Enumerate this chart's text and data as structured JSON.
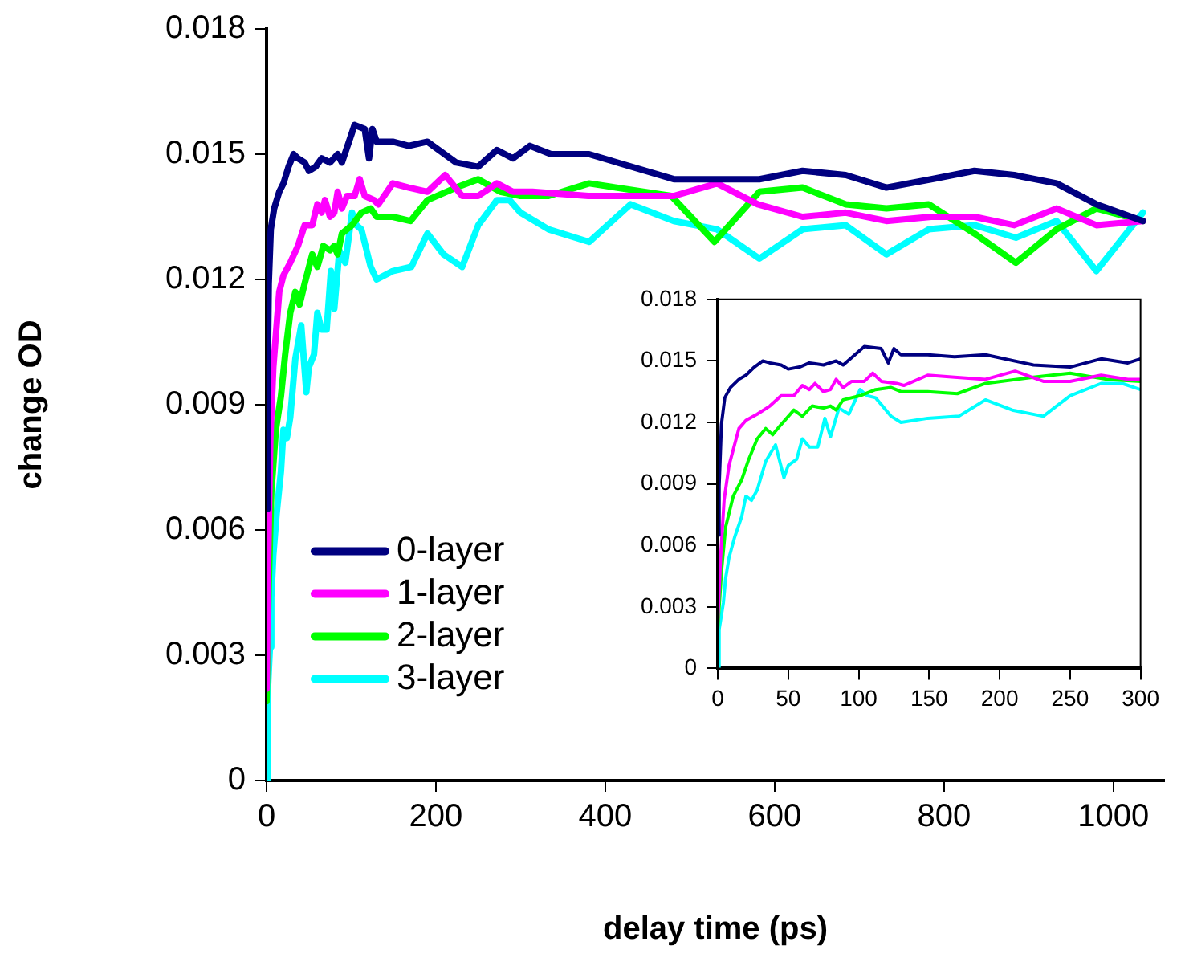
{
  "chart_data": [
    {
      "type": "line",
      "xlabel": "delay time (ps)",
      "ylabel": "change OD",
      "xlim": [
        0,
        1060
      ],
      "ylim": [
        0,
        0.018
      ],
      "xticks": [
        0,
        200,
        400,
        600,
        800,
        1000
      ],
      "yticks": [
        0,
        0.003,
        0.006,
        0.009,
        0.012,
        0.015,
        0.018
      ],
      "legend": "bottom left",
      "marker": "none",
      "series": [
        {
          "name": "0-layer",
          "color": "#000080",
          "x": [
            0,
            1,
            2.6,
            5,
            9,
            15,
            20,
            26,
            32,
            37,
            45,
            50,
            58,
            65,
            75,
            84,
            89,
            104,
            116,
            121,
            125,
            130,
            149,
            168,
            190,
            224,
            250,
            272,
            291,
            311,
            336,
            381,
            481,
            519,
            582,
            633,
            684,
            732,
            785,
            836,
            883,
            933,
            980,
            1035
          ],
          "values": [
            0.0065,
            0.0089,
            0.0119,
            0.0132,
            0.0137,
            0.0141,
            0.0143,
            0.0147,
            0.015,
            0.0149,
            0.0148,
            0.0146,
            0.0147,
            0.0149,
            0.0148,
            0.015,
            0.0148,
            0.0157,
            0.0156,
            0.0149,
            0.0156,
            0.0153,
            0.0153,
            0.0152,
            0.0153,
            0.0148,
            0.0147,
            0.0151,
            0.0149,
            0.0152,
            0.015,
            0.015,
            0.0144,
            0.0144,
            0.0144,
            0.0146,
            0.0145,
            0.0142,
            0.0144,
            0.0146,
            0.0145,
            0.0143,
            0.0138,
            0.0134
          ]
        },
        {
          "name": "1-layer",
          "color": "#ff00ff",
          "x": [
            0,
            2,
            4.5,
            8,
            15,
            20,
            28,
            37,
            45,
            54,
            60,
            65,
            69,
            75,
            80,
            84,
            89,
            95,
            104,
            110,
            116,
            127,
            132,
            149,
            168,
            190,
            211,
            231,
            250,
            272,
            291,
            314,
            380,
            481,
            532,
            580,
            633,
            684,
            732,
            785,
            836,
            883,
            933,
            980,
            1035
          ],
          "values": [
            0.0022,
            0.0054,
            0.0082,
            0.0099,
            0.0117,
            0.0121,
            0.0124,
            0.0128,
            0.0133,
            0.0133,
            0.0138,
            0.0136,
            0.0139,
            0.0135,
            0.0136,
            0.0141,
            0.0137,
            0.014,
            0.014,
            0.0144,
            0.014,
            0.0139,
            0.0138,
            0.0143,
            0.0142,
            0.0141,
            0.0145,
            0.014,
            0.014,
            0.0143,
            0.0141,
            0.0141,
            0.014,
            0.014,
            0.0143,
            0.0138,
            0.0135,
            0.0136,
            0.0134,
            0.0135,
            0.0135,
            0.0133,
            0.0137,
            0.0133,
            0.0134
          ]
        },
        {
          "name": "2-layer",
          "color": "#00ff00",
          "x": [
            0,
            2.6,
            5.6,
            11,
            17,
            22,
            28,
            34,
            39,
            45,
            54,
            60,
            67,
            75,
            80,
            84,
            89,
            101,
            112,
            123,
            130,
            149,
            170,
            190,
            224,
            250,
            276,
            300,
            333,
            381,
            478,
            529,
            582,
            633,
            684,
            732,
            782,
            836,
            885,
            933,
            980,
            1035
          ],
          "values": [
            0.0019,
            0.0047,
            0.0069,
            0.0084,
            0.0092,
            0.0102,
            0.0112,
            0.0117,
            0.0114,
            0.0119,
            0.0126,
            0.0123,
            0.0128,
            0.0127,
            0.0128,
            0.0126,
            0.0131,
            0.0133,
            0.0136,
            0.0137,
            0.0135,
            0.0135,
            0.0134,
            0.0139,
            0.0142,
            0.0144,
            0.0141,
            0.014,
            0.014,
            0.0143,
            0.014,
            0.0129,
            0.0141,
            0.0142,
            0.0138,
            0.0137,
            0.0138,
            0.0131,
            0.0124,
            0.0132,
            0.0137,
            0.0134
          ]
        },
        {
          "name": "3-layer",
          "color": "#00ffff",
          "x": [
            0,
            1,
            4,
            5.6,
            8,
            12,
            17,
            20,
            24,
            28,
            34,
            41,
            47,
            50,
            56,
            60,
            65,
            71,
            76,
            80,
            86,
            93,
            101,
            106,
            112,
            123,
            130,
            149,
            171,
            190,
            209,
            231,
            250,
            272,
            287,
            300,
            333,
            381,
            430,
            481,
            532,
            582,
            633,
            684,
            732,
            782,
            836,
            885,
            933,
            980,
            1035
          ],
          "values": [
            0,
            0.0019,
            0.0032,
            0.0044,
            0.0054,
            0.0064,
            0.0074,
            0.0084,
            0.0082,
            0.0087,
            0.0101,
            0.0109,
            0.0093,
            0.0099,
            0.0102,
            0.0112,
            0.0108,
            0.0108,
            0.0122,
            0.0113,
            0.0127,
            0.0124,
            0.0136,
            0.0133,
            0.0132,
            0.0123,
            0.012,
            0.0122,
            0.0123,
            0.0131,
            0.0126,
            0.0123,
            0.0133,
            0.0139,
            0.0139,
            0.0136,
            0.0132,
            0.0129,
            0.0138,
            0.0134,
            0.0132,
            0.0125,
            0.0132,
            0.0133,
            0.0126,
            0.0132,
            0.0133,
            0.013,
            0.0134,
            0.0122,
            0.0136
          ]
        }
      ]
    },
    {
      "type": "line",
      "xlim": [
        0,
        300
      ],
      "ylim": [
        0,
        0.018
      ],
      "xticks": [
        0,
        50,
        100,
        150,
        200,
        250,
        300
      ],
      "yticks": [
        0,
        0.003,
        0.006,
        0.009,
        0.012,
        0.015,
        0.018
      ],
      "marker": "none",
      "series": [
        {
          "color": "#000080",
          "x": [
            0,
            1,
            2.6,
            5,
            9,
            15,
            20,
            26,
            32,
            37,
            45,
            50,
            58,
            65,
            75,
            84,
            89,
            104,
            116,
            121,
            125,
            130,
            149,
            168,
            190,
            224,
            250,
            272,
            291,
            300
          ],
          "values": [
            0.0065,
            0.0089,
            0.0119,
            0.0132,
            0.0137,
            0.0141,
            0.0143,
            0.0147,
            0.015,
            0.0149,
            0.0148,
            0.0146,
            0.0147,
            0.0149,
            0.0148,
            0.015,
            0.0148,
            0.0157,
            0.0156,
            0.0149,
            0.0156,
            0.0153,
            0.0153,
            0.0152,
            0.0153,
            0.0148,
            0.0147,
            0.0151,
            0.0149,
            0.0151
          ]
        },
        {
          "color": "#ff00ff",
          "x": [
            0,
            2,
            4.5,
            8,
            15,
            20,
            28,
            37,
            45,
            54,
            60,
            65,
            69,
            75,
            80,
            84,
            89,
            95,
            104,
            110,
            116,
            127,
            132,
            149,
            168,
            190,
            211,
            231,
            250,
            272,
            291,
            300
          ],
          "values": [
            0.0022,
            0.0054,
            0.0082,
            0.0099,
            0.0117,
            0.0121,
            0.0124,
            0.0128,
            0.0133,
            0.0133,
            0.0138,
            0.0136,
            0.0139,
            0.0135,
            0.0136,
            0.0141,
            0.0137,
            0.014,
            0.014,
            0.0144,
            0.014,
            0.0139,
            0.0138,
            0.0143,
            0.0142,
            0.0141,
            0.0145,
            0.014,
            0.014,
            0.0143,
            0.0141,
            0.0141
          ]
        },
        {
          "color": "#00ff00",
          "x": [
            0,
            2.6,
            5.6,
            11,
            17,
            22,
            28,
            34,
            39,
            45,
            54,
            60,
            67,
            75,
            80,
            84,
            89,
            101,
            112,
            123,
            130,
            149,
            170,
            190,
            224,
            250,
            276,
            300
          ],
          "values": [
            0.0019,
            0.0047,
            0.0069,
            0.0084,
            0.0092,
            0.0102,
            0.0112,
            0.0117,
            0.0114,
            0.0119,
            0.0126,
            0.0123,
            0.0128,
            0.0127,
            0.0128,
            0.0126,
            0.0131,
            0.0133,
            0.0136,
            0.0137,
            0.0135,
            0.0135,
            0.0134,
            0.0139,
            0.0142,
            0.0144,
            0.0141,
            0.014
          ]
        },
        {
          "color": "#00ffff",
          "x": [
            0,
            1,
            4,
            5.6,
            8,
            12,
            17,
            20,
            24,
            28,
            34,
            41,
            47,
            50,
            56,
            60,
            65,
            71,
            76,
            80,
            86,
            93,
            101,
            106,
            112,
            123,
            130,
            149,
            171,
            190,
            209,
            231,
            250,
            272,
            287,
            300
          ],
          "values": [
            0,
            0.0019,
            0.0032,
            0.0044,
            0.0054,
            0.0064,
            0.0074,
            0.0084,
            0.0082,
            0.0087,
            0.0101,
            0.0109,
            0.0093,
            0.0099,
            0.0102,
            0.0112,
            0.0108,
            0.0108,
            0.0122,
            0.0113,
            0.0127,
            0.0124,
            0.0136,
            0.0133,
            0.0132,
            0.0123,
            0.012,
            0.0122,
            0.0123,
            0.0131,
            0.0126,
            0.0123,
            0.0133,
            0.0139,
            0.0139,
            0.0136
          ]
        }
      ]
    }
  ]
}
